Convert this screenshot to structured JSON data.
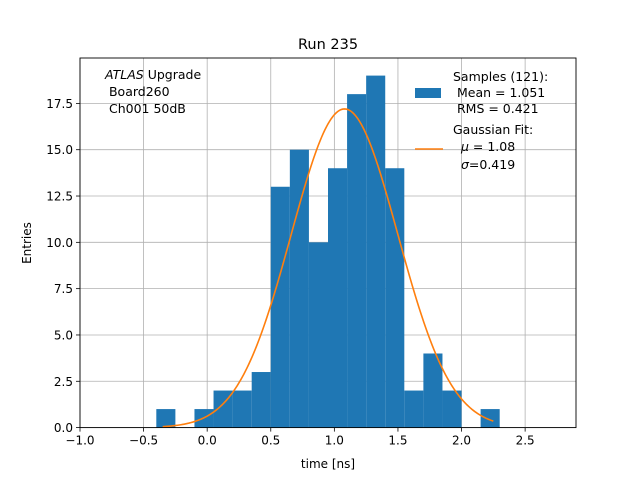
{
  "chart_data": {
    "type": "bar",
    "title": "Run 235",
    "xlabel": "time [ns]",
    "ylabel": "Entries",
    "xlim": [
      -1.0,
      2.9
    ],
    "ylim": [
      0,
      19.95
    ],
    "xticks": [
      -1.0,
      -0.5,
      0.0,
      0.5,
      1.0,
      1.5,
      2.0,
      2.5
    ],
    "xtick_labels": [
      "−1.0",
      "−0.5",
      "0.0",
      "0.5",
      "1.0",
      "1.5",
      "2.0",
      "2.5"
    ],
    "yticks": [
      0.0,
      2.5,
      5.0,
      7.5,
      10.0,
      12.5,
      15.0,
      17.5
    ],
    "ytick_labels": [
      "0.0",
      "2.5",
      "5.0",
      "7.5",
      "10.0",
      "12.5",
      "15.0",
      "17.5"
    ],
    "grid": true,
    "histogram": {
      "name": "Samples",
      "color": "#1f77b4",
      "bin_width": 0.15,
      "bin_left_edges": [
        -0.4,
        -0.25,
        -0.1,
        0.05,
        0.2,
        0.35,
        0.5,
        0.65,
        0.8,
        0.95,
        1.1,
        1.25,
        1.4,
        1.55,
        1.7,
        1.85,
        2.0,
        2.15
      ],
      "counts": [
        1,
        0,
        1,
        2,
        2,
        3,
        13,
        15,
        10,
        14,
        18,
        19,
        14,
        2,
        4,
        2,
        0,
        1
      ]
    },
    "fit": {
      "name": "Gaussian Fit",
      "color": "#ff7f0e",
      "mu": 1.08,
      "sigma": 0.419,
      "amplitude": 17.2,
      "x_range": [
        -0.35,
        2.25
      ]
    },
    "annotation": {
      "italic": "ATLAS",
      "rest": " Upgrade",
      "line2": " Board260",
      "line3": " Ch001 50dB"
    },
    "legend": {
      "position": "top-right",
      "samples_title": "Samples (121):",
      "samples_mean": " Mean = 1.051",
      "samples_rms": " RMS = 0.421",
      "fit_title": "Gaussian Fit:",
      "fit_mu_symbol": "μ",
      "fit_mu_value": " = 1.08",
      "fit_sigma_symbol": "σ",
      "fit_sigma_value": "=0.419"
    }
  }
}
